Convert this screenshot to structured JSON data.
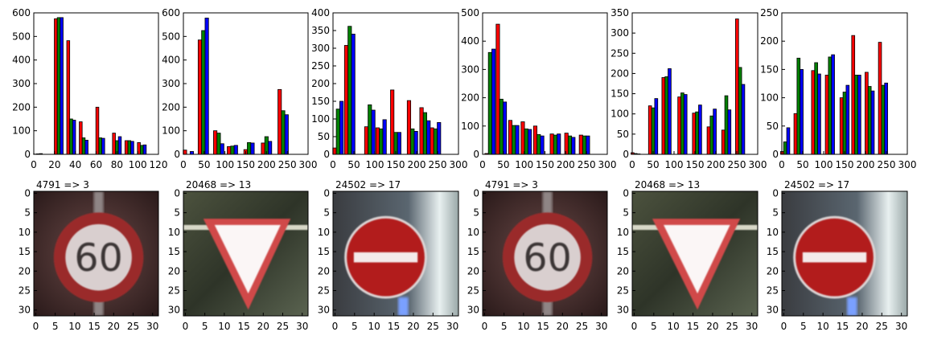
{
  "figure": {
    "background": "#ffffff"
  },
  "colors": {
    "red": "#ff0000",
    "green": "#008000",
    "blue": "#0000ff",
    "edge": "#000000"
  },
  "chart_data": [
    {
      "type": "bar",
      "title": "",
      "xlabel": "",
      "ylabel": "",
      "xlim": [
        0,
        120
      ],
      "ylim": [
        0,
        600
      ],
      "x_ticks": [
        "0",
        "20",
        "40",
        "60",
        "80",
        "100",
        "120"
      ],
      "y_ticks": [
        "0",
        "100",
        "200",
        "300",
        "400",
        "500",
        "600"
      ],
      "bin_width": 8.5,
      "series": [
        {
          "values": [
            1,
            575,
            482,
            138,
            200,
            90,
            58,
            50
          ]
        },
        {
          "values": [
            2,
            580,
            150,
            70,
            70,
            58,
            58,
            38
          ]
        },
        {
          "values": [
            3,
            580,
            145,
            60,
            68,
            75,
            55,
            40
          ]
        }
      ],
      "bin_centers": [
        4,
        24,
        36,
        48,
        64,
        80,
        92,
        104
      ]
    },
    {
      "type": "bar",
      "title": "",
      "xlabel": "",
      "ylabel": "",
      "xlim": [
        0,
        300
      ],
      "ylim": [
        0,
        600
      ],
      "x_ticks": [
        "0",
        "50",
        "100",
        "150",
        "200",
        "250",
        "300"
      ],
      "y_ticks": [
        "0",
        "100",
        "200",
        "300",
        "400",
        "500",
        "600"
      ],
      "bin_width": 25,
      "series": [
        {
          "values": [
            18,
            485,
            100,
            33,
            20,
            48,
            275
          ]
        },
        {
          "values": [
            0,
            525,
            90,
            35,
            50,
            75,
            185
          ]
        },
        {
          "values": [
            12,
            578,
            45,
            38,
            48,
            55,
            168
          ]
        }
      ],
      "bin_centers": [
        12,
        48,
        85,
        118,
        158,
        200,
        240
      ]
    },
    {
      "type": "bar",
      "title": "",
      "xlabel": "",
      "ylabel": "",
      "xlim": [
        0,
        300
      ],
      "ylim": [
        0,
        400
      ],
      "x_ticks": [
        "0",
        "50",
        "100",
        "150",
        "200",
        "250",
        "300"
      ],
      "y_ticks": [
        "0",
        "50",
        "100",
        "150",
        "200",
        "250",
        "300",
        "350",
        "400"
      ],
      "bin_width": 25,
      "series": [
        {
          "values": [
            18,
            308,
            78,
            75,
            182,
            152,
            132,
            75
          ]
        },
        {
          "values": [
            128,
            362,
            140,
            72,
            62,
            72,
            118,
            72
          ]
        },
        {
          "values": [
            150,
            340,
            125,
            98,
            62,
            65,
            95,
            90
          ]
        }
      ],
      "bin_centers": [
        12,
        40,
        88,
        115,
        150,
        190,
        220,
        245
      ]
    },
    {
      "type": "bar",
      "title": "",
      "xlabel": "",
      "ylabel": "",
      "xlim": [
        0,
        300
      ],
      "ylim": [
        0,
        500
      ],
      "x_ticks": [
        "0",
        "50",
        "100",
        "150",
        "200",
        "250",
        "300"
      ],
      "y_ticks": [
        "0",
        "100",
        "200",
        "300",
        "400",
        "500"
      ],
      "bin_width": 25,
      "series": [
        {
          "values": [
            3,
            460,
            120,
            115,
            100,
            72,
            75,
            68
          ]
        },
        {
          "values": [
            360,
            195,
            102,
            90,
            70,
            68,
            65,
            65
          ]
        },
        {
          "values": [
            372,
            185,
            102,
            88,
            65,
            72,
            60,
            65
          ]
        }
      ],
      "bin_centers": [
        18,
        45,
        75,
        105,
        135,
        175,
        210,
        245
      ]
    },
    {
      "type": "bar",
      "title": "",
      "xlabel": "",
      "ylabel": "",
      "xlim": [
        0,
        300
      ],
      "ylim": [
        0,
        350
      ],
      "x_ticks": [
        "0",
        "50",
        "100",
        "150",
        "200",
        "250",
        "300"
      ],
      "y_ticks": [
        "0",
        "50",
        "100",
        "150",
        "200",
        "250",
        "300",
        "350"
      ],
      "bin_width": 22,
      "series": [
        {
          "values": [
            4,
            120,
            190,
            142,
            102,
            68,
            60,
            335
          ]
        },
        {
          "values": [
            2,
            115,
            192,
            152,
            105,
            95,
            145,
            215
          ]
        },
        {
          "values": [
            1,
            138,
            212,
            148,
            122,
            112,
            110,
            173
          ]
        }
      ],
      "bin_centers": [
        8,
        50,
        82,
        120,
        155,
        190,
        225,
        258
      ]
    },
    {
      "type": "bar",
      "title": "",
      "xlabel": "",
      "ylabel": "",
      "xlim": [
        0,
        300
      ],
      "ylim": [
        0,
        250
      ],
      "x_ticks": [
        "0",
        "50",
        "100",
        "150",
        "200",
        "250",
        "300"
      ],
      "y_ticks": [
        "0",
        "50",
        "100",
        "150",
        "200",
        "250"
      ],
      "bin_width": 22,
      "series": [
        {
          "values": [
            5,
            72,
            148,
            140,
            100,
            210,
            145,
            198
          ]
        },
        {
          "values": [
            22,
            170,
            162,
            172,
            110,
            140,
            120,
            122
          ]
        },
        {
          "values": [
            47,
            150,
            142,
            176,
            122,
            140,
            112,
            126
          ]
        }
      ],
      "bin_centers": [
        8,
        40,
        82,
        115,
        150,
        178,
        210,
        242
      ]
    }
  ],
  "image_panels": [
    {
      "title": "4791 => 3",
      "image": "speed-limit-60-sign",
      "x_ticks": [
        "0",
        "5",
        "10",
        "15",
        "20",
        "25",
        "30"
      ],
      "y_ticks": [
        "0",
        "5",
        "10",
        "15",
        "20",
        "25",
        "30"
      ]
    },
    {
      "title": "20468 => 13",
      "image": "yield-sign",
      "x_ticks": [
        "0",
        "5",
        "10",
        "15",
        "20",
        "25",
        "30"
      ],
      "y_ticks": [
        "0",
        "5",
        "10",
        "15",
        "20",
        "25",
        "30"
      ]
    },
    {
      "title": "24502 => 17",
      "image": "no-entry-sign",
      "x_ticks": [
        "0",
        "5",
        "10",
        "15",
        "20",
        "25",
        "30"
      ],
      "y_ticks": [
        "0",
        "5",
        "10",
        "15",
        "20",
        "25",
        "30"
      ]
    },
    {
      "title": "4791 => 3",
      "image": "speed-limit-60-sign",
      "x_ticks": [
        "0",
        "5",
        "10",
        "15",
        "20",
        "25",
        "30"
      ],
      "y_ticks": [
        "0",
        "5",
        "10",
        "15",
        "20",
        "25",
        "30"
      ]
    },
    {
      "title": "20468 => 13",
      "image": "yield-sign",
      "x_ticks": [
        "0",
        "5",
        "10",
        "15",
        "20",
        "25",
        "30"
      ],
      "y_ticks": [
        "0",
        "5",
        "10",
        "15",
        "20",
        "25",
        "30"
      ]
    },
    {
      "title": "24502 => 17",
      "image": "no-entry-sign",
      "x_ticks": [
        "0",
        "5",
        "10",
        "15",
        "20",
        "25",
        "30"
      ],
      "y_ticks": [
        "0",
        "5",
        "10",
        "15",
        "20",
        "25",
        "30"
      ]
    }
  ]
}
